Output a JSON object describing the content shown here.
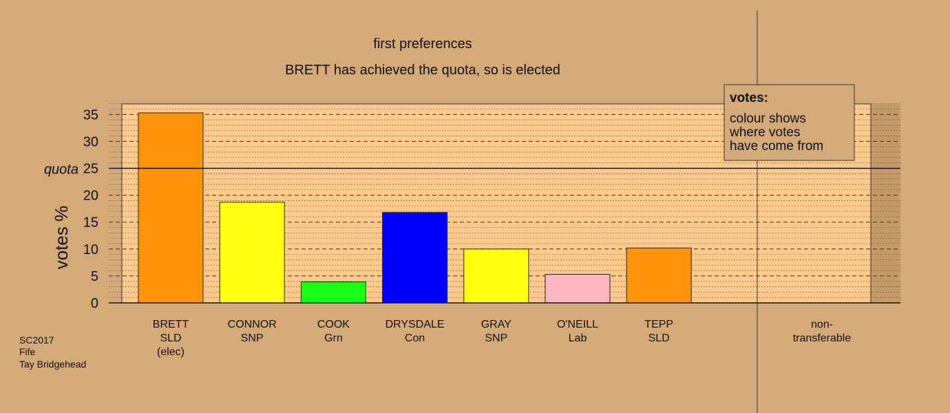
{
  "chart_data": {
    "type": "bar",
    "title": "first preferences",
    "subtitle": "BRETT has achieved the quota, so is elected",
    "ylabel": "votes %",
    "ylim": [
      0,
      37
    ],
    "yticks": [
      0,
      5,
      10,
      15,
      20,
      25,
      30,
      35
    ],
    "quota": {
      "label": "quota",
      "value": 25
    },
    "categories": [
      {
        "lines": [
          "BRETT",
          "SLD",
          "(elec)"
        ],
        "value": 35.3,
        "color": "#ff9408"
      },
      {
        "lines": [
          "CONNOR",
          "SNP"
        ],
        "value": 18.7,
        "color": "#ffff10"
      },
      {
        "lines": [
          "COOK",
          "Grn"
        ],
        "value": 3.9,
        "color": "#1aff1a"
      },
      {
        "lines": [
          "DRYSDALE",
          "Con"
        ],
        "value": 16.8,
        "color": "#0000ff"
      },
      {
        "lines": [
          "GRAY",
          "SNP"
        ],
        "value": 10.0,
        "color": "#ffff10"
      },
      {
        "lines": [
          "O'NEILL",
          "Lab"
        ],
        "value": 5.3,
        "color": "#ffb6c1"
      },
      {
        "lines": [
          "TEPP",
          "SLD"
        ],
        "value": 10.2,
        "color": "#ff9408"
      },
      {
        "lines": [
          "non-",
          "transferable"
        ],
        "value": 0,
        "color": "#ffffff"
      }
    ],
    "legend": {
      "title": "votes:",
      "lines": [
        "colour shows",
        "where votes",
        "have come from"
      ],
      "position": "top-right"
    },
    "grid": true
  },
  "meta": {
    "lines": [
      "SC2017",
      "Fife",
      "Tay Bridgehead"
    ]
  },
  "colors": {
    "background": "#d4aa78",
    "panel": "#fdca8c",
    "panel_right": "#c49a68"
  }
}
